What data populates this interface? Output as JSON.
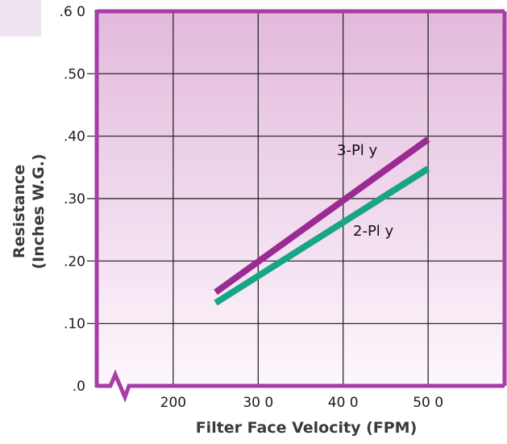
{
  "chart_data": {
    "type": "line",
    "title": "",
    "xlabel": "Filter Face Velocity (FPM)",
    "ylabel_line1": "Resistance",
    "ylabel_line2": "(Inches W.G.)",
    "x_ticks": [
      {
        "value": 200,
        "label": "200"
      },
      {
        "value": 300,
        "label": "30 0"
      },
      {
        "value": 400,
        "label": "40 0"
      },
      {
        "value": 500,
        "label": "50 0"
      }
    ],
    "y_ticks": [
      {
        "value": 0.0,
        "label": ".0"
      },
      {
        "value": 0.1,
        "label": ".10"
      },
      {
        "value": 0.2,
        "label": ".20"
      },
      {
        "value": 0.3,
        "label": ".30"
      },
      {
        "value": 0.4,
        "label": ".40"
      },
      {
        "value": 0.5,
        "label": ".50"
      },
      {
        "value": 0.6,
        "label": ".6 0"
      }
    ],
    "xlim": [
      110,
      590
    ],
    "ylim": [
      0.0,
      0.6
    ],
    "x_gridlines": [
      200,
      300,
      400,
      500
    ],
    "y_gridlines": [
      0.1,
      0.2,
      0.3,
      0.4,
      0.5
    ],
    "grid": true,
    "axis_break": "x-axis near origin",
    "series": [
      {
        "name": "3-Pl y",
        "color": "#9b2a93",
        "x": [
          250,
          500
        ],
        "y": [
          0.15,
          0.395
        ]
      },
      {
        "name": "2-Pl y",
        "color": "#16a585",
        "x": [
          250,
          500
        ],
        "y": [
          0.133,
          0.348
        ]
      }
    ],
    "frame_color": "#a63ea6",
    "background_top": "#e2b9dc",
    "background_bottom": "#fdf7fc",
    "corner_tint": "#f1e4f2"
  }
}
